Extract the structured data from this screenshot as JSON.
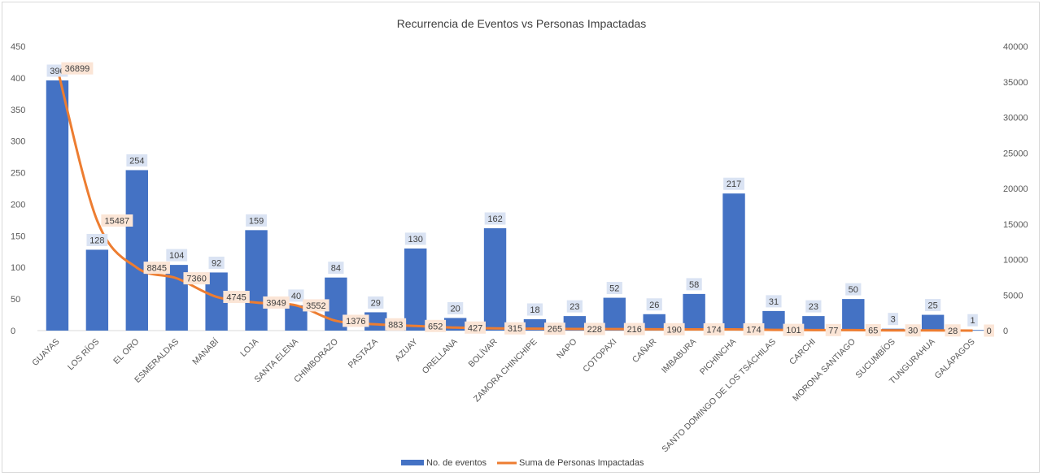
{
  "chart_data": {
    "type": "bar",
    "title": "Recurrencia de Eventos vs Personas Impactadas",
    "xlabel": "",
    "ylabel": "",
    "ylim": [
      0,
      450
    ],
    "y2lim": [
      0,
      40000
    ],
    "y_ticks": [
      "0",
      "50",
      "100",
      "150",
      "200",
      "250",
      "300",
      "350",
      "400",
      "450"
    ],
    "y2_ticks": [
      "0",
      "5000",
      "10000",
      "15000",
      "20000",
      "25000",
      "30000",
      "35000",
      "40000"
    ],
    "grid": false,
    "legend_position": "bottom",
    "categories": [
      "GUAYAS",
      "LOS RÍOS",
      "EL ORO",
      "ESMERALDAS",
      "MANABÍ",
      "LOJA",
      "SANTA ELENA",
      "CHIMBORAZO",
      "PASTAZA",
      "AZUAY",
      "ORELLANA",
      "BOLÍVAR",
      "ZAMORA CHINCHIPE",
      "NAPO",
      "COTOPAXI",
      "CAÑAR",
      "IMBABURA",
      "PICHINCHA",
      "SANTO DOMINGO DE LOS TSÁCHILAS",
      "CARCHI",
      "MORONA SANTIAGO",
      "SUCUMBÍOS",
      "TUNGURAHUA",
      "GALÁPAGOS"
    ],
    "series": [
      {
        "name": "No. de eventos",
        "type": "bar",
        "axis": "left",
        "color": "#4472c4",
        "values": [
          396,
          128,
          254,
          104,
          92,
          159,
          40,
          84,
          29,
          130,
          20,
          162,
          18,
          23,
          52,
          26,
          58,
          217,
          31,
          23,
          50,
          3,
          25,
          1
        ]
      },
      {
        "name": "Suma de Personas Impactadas",
        "type": "line",
        "axis": "right",
        "color": "#ed7d31",
        "values": [
          36899,
          15487,
          8845,
          7360,
          4745,
          3949,
          3552,
          1376,
          883,
          652,
          427,
          315,
          265,
          228,
          216,
          190,
          174,
          174,
          101,
          77,
          65,
          30,
          28,
          0
        ]
      }
    ]
  },
  "colors": {
    "bar_label_bg": "#dae3f3",
    "line_label_bg": "#fbe5d6",
    "axis_text": "#595959",
    "axis_line": "#d9d9d9"
  }
}
